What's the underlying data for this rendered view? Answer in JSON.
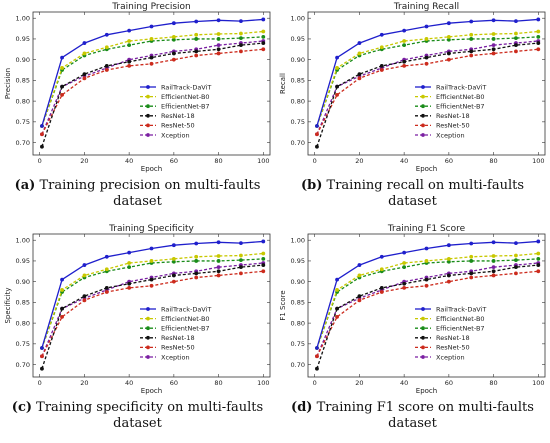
{
  "chart_data": [
    {
      "type": "line",
      "title": "Training Precision",
      "xlabel": "Epoch",
      "ylabel": "Precision",
      "xlim": [
        -3,
        103
      ],
      "ylim": [
        0.67,
        1.015
      ],
      "xticks": [
        0,
        20,
        40,
        60,
        80,
        100
      ],
      "yticks": [
        0.7,
        0.75,
        0.8,
        0.85,
        0.9,
        0.95,
        1.0
      ],
      "ytick_labels": [
        "0.70",
        "0.75",
        "0.80",
        "0.85",
        "0.90",
        "0.95",
        "1.00"
      ],
      "legend_position": "center-right",
      "grid": false,
      "caption": {
        "label": "(a)",
        "text": " Training precision on multi-faults dataset"
      },
      "x": [
        1,
        10,
        20,
        30,
        40,
        50,
        60,
        70,
        80,
        90,
        100
      ],
      "series": [
        {
          "name": "RailTrack-DaViT",
          "color": "#1f1fcc",
          "style": "solid",
          "values": [
            0.74,
            0.905,
            0.94,
            0.96,
            0.97,
            0.98,
            0.988,
            0.992,
            0.995,
            0.993,
            0.997
          ]
        },
        {
          "name": "EfficientNet-B0",
          "color": "#c8c800",
          "style": "dashed",
          "values": [
            0.74,
            0.88,
            0.915,
            0.93,
            0.945,
            0.95,
            0.955,
            0.96,
            0.962,
            0.963,
            0.968
          ]
        },
        {
          "name": "EfficientNet-B7",
          "color": "#1a8c1a",
          "style": "dashed",
          "values": [
            0.74,
            0.875,
            0.91,
            0.925,
            0.935,
            0.945,
            0.948,
            0.95,
            0.95,
            0.952,
            0.955
          ]
        },
        {
          "name": "ResNet-18",
          "color": "#111111",
          "style": "dashed",
          "values": [
            0.69,
            0.835,
            0.865,
            0.885,
            0.895,
            0.905,
            0.915,
            0.92,
            0.925,
            0.935,
            0.94
          ]
        },
        {
          "name": "ResNet-50",
          "color": "#cc2b1d",
          "style": "dashed",
          "values": [
            0.72,
            0.815,
            0.855,
            0.875,
            0.885,
            0.89,
            0.9,
            0.91,
            0.915,
            0.92,
            0.925
          ]
        },
        {
          "name": "Xception",
          "color": "#7a1fa2",
          "style": "dashed",
          "values": [
            0.72,
            0.835,
            0.86,
            0.88,
            0.9,
            0.91,
            0.92,
            0.925,
            0.935,
            0.94,
            0.945
          ]
        }
      ]
    },
    {
      "type": "line",
      "title": "Training Recall",
      "xlabel": "Epoch",
      "ylabel": "Recall",
      "xlim": [
        -3,
        103
      ],
      "ylim": [
        0.67,
        1.015
      ],
      "xticks": [
        0,
        20,
        40,
        60,
        80,
        100
      ],
      "yticks": [
        0.7,
        0.75,
        0.8,
        0.85,
        0.9,
        0.95,
        1.0
      ],
      "ytick_labels": [
        "0.70",
        "0.75",
        "0.80",
        "0.85",
        "0.90",
        "0.95",
        "1.00"
      ],
      "legend_position": "center-right",
      "grid": false,
      "caption": {
        "label": "(b)",
        "text": " Training recall on multi-faults dataset"
      },
      "x": [
        1,
        10,
        20,
        30,
        40,
        50,
        60,
        70,
        80,
        90,
        100
      ],
      "series": [
        {
          "name": "RailTrack-DaViT",
          "color": "#1f1fcc",
          "style": "solid",
          "values": [
            0.74,
            0.905,
            0.94,
            0.96,
            0.97,
            0.98,
            0.988,
            0.992,
            0.995,
            0.993,
            0.997
          ]
        },
        {
          "name": "EfficientNet-B0",
          "color": "#c8c800",
          "style": "dashed",
          "values": [
            0.74,
            0.88,
            0.915,
            0.93,
            0.945,
            0.95,
            0.955,
            0.96,
            0.962,
            0.963,
            0.968
          ]
        },
        {
          "name": "EfficientNet-B7",
          "color": "#1a8c1a",
          "style": "dashed",
          "values": [
            0.74,
            0.875,
            0.91,
            0.925,
            0.935,
            0.945,
            0.948,
            0.95,
            0.95,
            0.952,
            0.955
          ]
        },
        {
          "name": "ResNet-18",
          "color": "#111111",
          "style": "dashed",
          "values": [
            0.69,
            0.835,
            0.865,
            0.885,
            0.895,
            0.905,
            0.915,
            0.92,
            0.925,
            0.935,
            0.94
          ]
        },
        {
          "name": "ResNet-50",
          "color": "#cc2b1d",
          "style": "dashed",
          "values": [
            0.72,
            0.815,
            0.855,
            0.875,
            0.885,
            0.89,
            0.9,
            0.91,
            0.915,
            0.92,
            0.925
          ]
        },
        {
          "name": "Xception",
          "color": "#7a1fa2",
          "style": "dashed",
          "values": [
            0.72,
            0.835,
            0.86,
            0.88,
            0.9,
            0.91,
            0.92,
            0.925,
            0.935,
            0.94,
            0.945
          ]
        }
      ]
    },
    {
      "type": "line",
      "title": "Training Specificity",
      "xlabel": "Epoch",
      "ylabel": "Specificity",
      "xlim": [
        -3,
        103
      ],
      "ylim": [
        0.67,
        1.015
      ],
      "xticks": [
        0,
        20,
        40,
        60,
        80,
        100
      ],
      "yticks": [
        0.7,
        0.75,
        0.8,
        0.85,
        0.9,
        0.95,
        1.0
      ],
      "ytick_labels": [
        "0.70",
        "0.75",
        "0.80",
        "0.85",
        "0.90",
        "0.95",
        "1.00"
      ],
      "legend_position": "center-right",
      "grid": false,
      "caption": {
        "label": "(c)",
        "text": " Training specificity on multi-faults dataset"
      },
      "x": [
        1,
        10,
        20,
        30,
        40,
        50,
        60,
        70,
        80,
        90,
        100
      ],
      "series": [
        {
          "name": "RailTrack-DaViT",
          "color": "#1f1fcc",
          "style": "solid",
          "values": [
            0.74,
            0.905,
            0.94,
            0.96,
            0.97,
            0.98,
            0.988,
            0.992,
            0.995,
            0.993,
            0.997
          ]
        },
        {
          "name": "EfficientNet-B0",
          "color": "#c8c800",
          "style": "dashed",
          "values": [
            0.74,
            0.88,
            0.915,
            0.93,
            0.945,
            0.95,
            0.955,
            0.96,
            0.962,
            0.963,
            0.968
          ]
        },
        {
          "name": "EfficientNet-B7",
          "color": "#1a8c1a",
          "style": "dashed",
          "values": [
            0.74,
            0.875,
            0.91,
            0.925,
            0.935,
            0.945,
            0.948,
            0.95,
            0.95,
            0.952,
            0.955
          ]
        },
        {
          "name": "ResNet-18",
          "color": "#111111",
          "style": "dashed",
          "values": [
            0.69,
            0.835,
            0.865,
            0.885,
            0.895,
            0.905,
            0.915,
            0.92,
            0.925,
            0.935,
            0.94
          ]
        },
        {
          "name": "ResNet-50",
          "color": "#cc2b1d",
          "style": "dashed",
          "values": [
            0.72,
            0.815,
            0.855,
            0.875,
            0.885,
            0.89,
            0.9,
            0.91,
            0.915,
            0.92,
            0.925
          ]
        },
        {
          "name": "Xception",
          "color": "#7a1fa2",
          "style": "dashed",
          "values": [
            0.72,
            0.835,
            0.86,
            0.88,
            0.9,
            0.91,
            0.92,
            0.925,
            0.935,
            0.94,
            0.945
          ]
        }
      ]
    },
    {
      "type": "line",
      "title": "Training F1 Score",
      "xlabel": "Epoch",
      "ylabel": "F1 Score",
      "xlim": [
        -3,
        103
      ],
      "ylim": [
        0.67,
        1.015
      ],
      "xticks": [
        0,
        20,
        40,
        60,
        80,
        100
      ],
      "yticks": [
        0.7,
        0.75,
        0.8,
        0.85,
        0.9,
        0.95,
        1.0
      ],
      "ytick_labels": [
        "0.70",
        "0.75",
        "0.80",
        "0.85",
        "0.90",
        "0.95",
        "1.00"
      ],
      "legend_position": "center-right",
      "grid": false,
      "caption": {
        "label": "(d)",
        "text": " Training F1 score on multi-faults dataset"
      },
      "x": [
        1,
        10,
        20,
        30,
        40,
        50,
        60,
        70,
        80,
        90,
        100
      ],
      "series": [
        {
          "name": "RailTrack-DaViT",
          "color": "#1f1fcc",
          "style": "solid",
          "values": [
            0.74,
            0.905,
            0.94,
            0.96,
            0.97,
            0.98,
            0.988,
            0.992,
            0.995,
            0.993,
            0.997
          ]
        },
        {
          "name": "EfficientNet-B0",
          "color": "#c8c800",
          "style": "dashed",
          "values": [
            0.74,
            0.88,
            0.915,
            0.93,
            0.945,
            0.95,
            0.955,
            0.96,
            0.962,
            0.963,
            0.968
          ]
        },
        {
          "name": "EfficientNet-B7",
          "color": "#1a8c1a",
          "style": "dashed",
          "values": [
            0.74,
            0.875,
            0.91,
            0.925,
            0.935,
            0.945,
            0.948,
            0.95,
            0.95,
            0.952,
            0.955
          ]
        },
        {
          "name": "ResNet-18",
          "color": "#111111",
          "style": "dashed",
          "values": [
            0.69,
            0.835,
            0.865,
            0.885,
            0.895,
            0.905,
            0.915,
            0.92,
            0.925,
            0.935,
            0.94
          ]
        },
        {
          "name": "ResNet-50",
          "color": "#cc2b1d",
          "style": "dashed",
          "values": [
            0.72,
            0.815,
            0.855,
            0.875,
            0.885,
            0.89,
            0.9,
            0.91,
            0.915,
            0.92,
            0.925
          ]
        },
        {
          "name": "Xception",
          "color": "#7a1fa2",
          "style": "dashed",
          "values": [
            0.72,
            0.835,
            0.86,
            0.88,
            0.9,
            0.91,
            0.92,
            0.925,
            0.935,
            0.94,
            0.945
          ]
        }
      ]
    }
  ]
}
